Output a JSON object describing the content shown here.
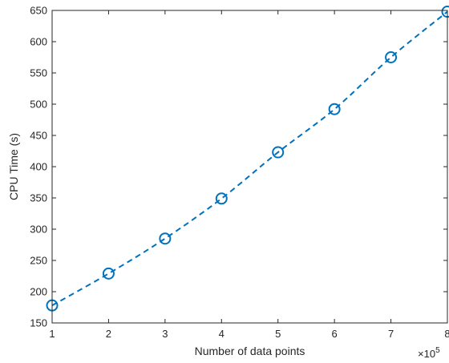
{
  "chart_data": {
    "type": "line",
    "title": "",
    "xlabel": "Number of data points",
    "ylabel": "CPU Time (s)",
    "x_multiplier_base": "×10",
    "x_multiplier_exp": "5",
    "xlim": [
      1,
      8
    ],
    "ylim": [
      150,
      650
    ],
    "x_ticks": [
      "1",
      "2",
      "3",
      "4",
      "5",
      "6",
      "7",
      "8"
    ],
    "y_ticks": [
      "150",
      "200",
      "250",
      "300",
      "350",
      "400",
      "450",
      "500",
      "550",
      "600",
      "650"
    ],
    "grid": false,
    "series": [
      {
        "line_style": "dashed",
        "marker": "circle",
        "color": "#0072BD",
        "x": [
          1,
          2,
          3,
          4,
          5,
          6,
          7,
          8
        ],
        "y": [
          178,
          229,
          285,
          349,
          423,
          492,
          575,
          648
        ]
      }
    ]
  }
}
